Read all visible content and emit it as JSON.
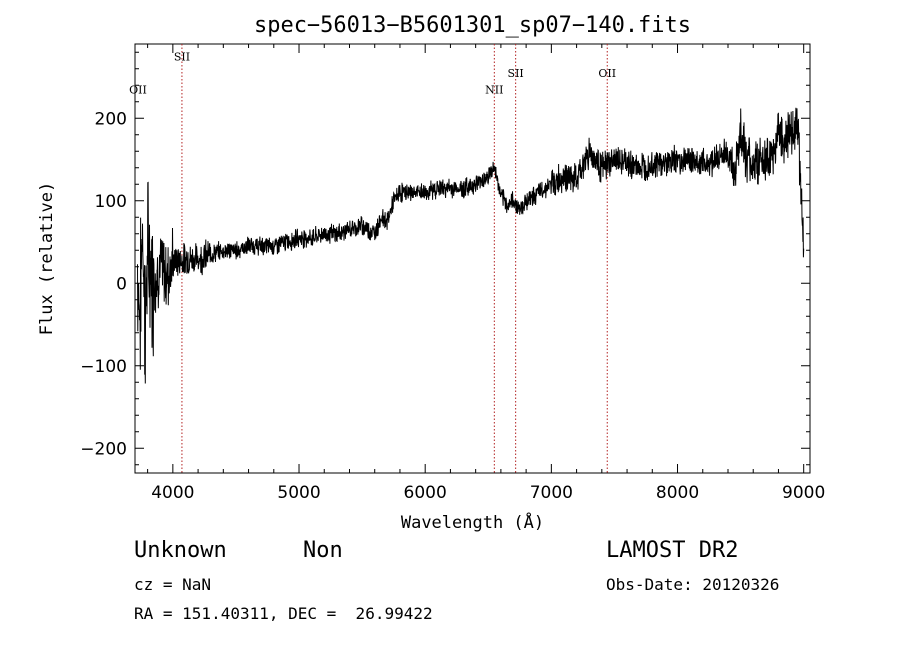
{
  "chart_data": {
    "type": "line",
    "title": "spec−56013−B5601301_sp07−140.fits",
    "xlabel": "Wavelength (Å)",
    "ylabel": "Flux (relative)",
    "xlim": [
      3700,
      9050
    ],
    "ylim": [
      -230,
      290
    ],
    "x_ticks": [
      4000,
      5000,
      6000,
      7000,
      8000,
      9000
    ],
    "y_ticks": [
      -200,
      -100,
      0,
      100,
      200
    ],
    "y_tick_labels": [
      "−200",
      "−100",
      "0",
      "100",
      "200"
    ],
    "grid": false,
    "line_color": "#000000",
    "series": [
      {
        "x": [
          3720,
          3740,
          3760,
          3780,
          3800,
          3850,
          3900,
          3950,
          4000,
          4100,
          4200,
          4300,
          4400,
          4500,
          4600,
          4700,
          4800,
          4900,
          5000,
          5100,
          5200,
          5300,
          5400,
          5500,
          5600,
          5650,
          5700,
          5750,
          5800,
          5900,
          6000,
          6100,
          6200,
          6300,
          6400,
          6500,
          6550,
          6600,
          6650,
          6700,
          6750,
          6800,
          6900,
          7000,
          7100,
          7200,
          7300,
          7400,
          7500,
          7600,
          7700,
          7800,
          7900,
          8000,
          8100,
          8200,
          8300,
          8400,
          8450,
          8500,
          8550,
          8600,
          8700,
          8750,
          8800,
          8850,
          8900,
          8950,
          9000
        ],
        "y": [
          20,
          -40,
          80,
          -60,
          40,
          0,
          20,
          10,
          25,
          30,
          30,
          35,
          40,
          40,
          45,
          45,
          45,
          50,
          55,
          55,
          60,
          60,
          65,
          70,
          60,
          80,
          75,
          100,
          110,
          110,
          110,
          115,
          115,
          115,
          120,
          130,
          140,
          105,
          95,
          100,
          90,
          100,
          110,
          120,
          130,
          125,
          160,
          140,
          150,
          145,
          140,
          145,
          145,
          150,
          150,
          145,
          150,
          160,
          130,
          185,
          150,
          145,
          150,
          145,
          190,
          170,
          180,
          200,
          50
        ]
      }
    ],
    "lines": [
      {
        "x": 4072,
        "label": "SII",
        "label_y": 270
      },
      {
        "x": 6548,
        "label": "NII",
        "label_y": 230
      },
      {
        "x": 6717,
        "label": "SII",
        "label_y": 250
      },
      {
        "x": 7443,
        "label": "OII",
        "label_y": 250
      }
    ],
    "edge_labels": [
      {
        "label": "OII",
        "label_y": 230
      }
    ]
  },
  "footer": {
    "class_label": "Unknown",
    "subclass_label": "Non",
    "survey_label": "LAMOST DR2",
    "cz_label": "cz = NaN",
    "obs_date_label": "Obs-Date: 20120326",
    "coords_label": "RA = 151.40311, DEC =  26.99422"
  }
}
